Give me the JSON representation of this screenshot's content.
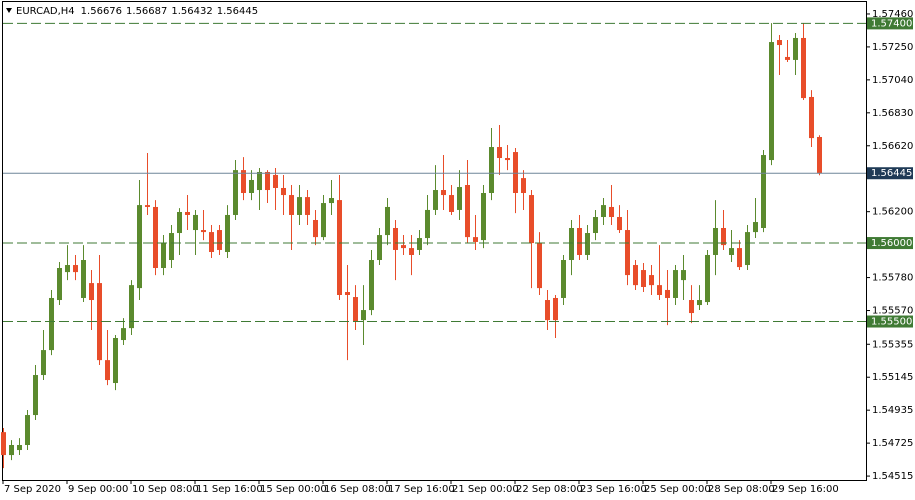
{
  "chart_data": {
    "type": "candlestick",
    "symbol": "EURCAD,H4",
    "up_color": "#5b8a2e",
    "down_color": "#e84d2a",
    "level_color": "#3f7a34",
    "last_color": "#6f8599",
    "categories": [
      "7 Sep 2020",
      null,
      null,
      null,
      null,
      null,
      null,
      null,
      "9 Sep 00:00",
      null,
      null,
      null,
      null,
      null,
      null,
      null,
      "10 Sep 08:00",
      null,
      null,
      null,
      null,
      null,
      null,
      null,
      "11 Sep 16:00",
      null,
      null,
      null,
      null,
      null,
      null,
      null,
      "15 Sep 00:00",
      null,
      null,
      null,
      null,
      null,
      null,
      null,
      "16 Sep 08:00",
      null,
      null,
      null,
      null,
      null,
      null,
      null,
      "17 Sep 16:00",
      null,
      null,
      null,
      null,
      null,
      null,
      null,
      "21 Sep 00:00",
      null,
      null,
      null,
      null,
      null,
      null,
      null,
      "22 Sep 08:00",
      null,
      null,
      null,
      null,
      null,
      null,
      null,
      "23 Sep 16:00",
      null,
      null,
      null,
      null,
      null,
      null,
      null,
      "25 Sep 00:00",
      null,
      null,
      null,
      null,
      null,
      null,
      null,
      "28 Sep 08:00",
      null,
      null,
      null,
      null,
      null,
      null,
      null,
      "29 Sep 16:00",
      null,
      null,
      null,
      null,
      null,
      null
    ],
    "open": [
      1.54795,
      1.54649,
      1.54681,
      1.54713,
      1.54904,
      1.55159,
      1.55318,
      1.55637,
      1.55815,
      1.5586,
      1.5565,
      1.55745,
      1.55745,
      1.55254,
      1.55108,
      1.55382,
      1.55458,
      1.55713,
      1.56242,
      1.5623,
      1.55841,
      1.55892,
      1.56064,
      1.56198,
      1.56083,
      1.56083,
      1.5607,
      1.56083,
      1.55943,
      1.56179,
      1.56465,
      1.56319,
      1.56338,
      1.56453,
      1.56434,
      1.56351,
      1.56306,
      1.56179,
      1.56293,
      1.56147,
      1.56038,
      1.56255,
      1.56274,
      1.55688,
      1.55656,
      1.55509,
      1.55573,
      1.55892,
      1.56051,
      1.56096,
      1.55987,
      1.55968,
      1.55956,
      1.56032,
      1.56211,
      1.56338,
      1.56306,
      1.56211,
      1.5637,
      1.56038,
      1.56019,
      1.56319,
      1.56612,
      1.56542,
      1.5658,
      1.56414,
      1.56306,
      1.56,
      1.55637,
      1.5565,
      1.5565,
      1.55892,
      1.56096,
      1.55924,
      1.56064,
      1.56166,
      1.5623,
      1.56166,
      1.56083,
      1.5586,
      1.55828,
      1.55796,
      1.55732,
      1.55701,
      1.5565,
      1.55764,
      1.55637,
      1.55605,
      1.55624,
      1.55924,
      1.56096,
      1.55924,
      1.55968,
      1.5586,
      1.5607,
      1.56096,
      1.56529,
      1.57294,
      1.57186,
      1.57167,
      1.57307,
      1.56931,
      1.56676
    ],
    "high": [
      1.54821,
      1.54744,
      1.54757,
      1.54936,
      1.55223,
      1.55446,
      1.55701,
      1.55879,
      1.55987,
      1.55924,
      1.55987,
      1.55828,
      1.55924,
      1.55446,
      1.55414,
      1.55522,
      1.55764,
      1.56402,
      1.56574,
      1.56274,
      1.56051,
      1.56115,
      1.56223,
      1.56306,
      1.56211,
      1.56211,
      1.56115,
      1.56115,
      1.56242,
      1.56529,
      1.56548,
      1.56465,
      1.56478,
      1.56465,
      1.56478,
      1.56434,
      1.5637,
      1.5637,
      1.56338,
      1.56211,
      1.56306,
      1.56402,
      1.56434,
      1.5586,
      1.55732,
      1.55732,
      1.55956,
      1.56096,
      1.56287,
      1.56147,
      1.56051,
      1.56051,
      1.56083,
      1.56306,
      1.56497,
      1.56561,
      1.5637,
      1.56465,
      1.56529,
      1.56179,
      1.5637,
      1.56733,
      1.56752,
      1.56625,
      1.56606,
      1.56465,
      1.56338,
      1.5607,
      1.55701,
      1.55669,
      1.55924,
      1.56147,
      1.56179,
      1.56115,
      1.56211,
      1.56287,
      1.5637,
      1.56242,
      1.56211,
      1.55892,
      1.55873,
      1.5586,
      1.55987,
      1.55828,
      1.5586,
      1.55924,
      1.55732,
      1.55732,
      1.55956,
      1.56274,
      1.56211,
      1.56083,
      1.56019,
      1.56115,
      1.56287,
      1.56593,
      1.57402,
      1.57326,
      1.57294,
      1.57339,
      1.57402,
      1.56975,
      1.56687
    ],
    "low": [
      1.54566,
      1.54617,
      1.54649,
      1.54681,
      1.54872,
      1.55127,
      1.55286,
      1.55605,
      1.55764,
      1.55764,
      1.55624,
      1.55446,
      1.55223,
      1.55095,
      1.55063,
      1.5535,
      1.55414,
      1.55637,
      1.56179,
      1.55796,
      1.55796,
      1.55841,
      1.55924,
      1.56083,
      1.55924,
      1.56019,
      1.55905,
      1.55924,
      1.55905,
      1.56147,
      1.56274,
      1.56274,
      1.56211,
      1.56255,
      1.56211,
      1.56179,
      1.55956,
      1.56115,
      1.56115,
      1.55987,
      1.56019,
      1.56179,
      1.55637,
      1.55254,
      1.55446,
      1.5535,
      1.55541,
      1.5586,
      1.55987,
      1.55764,
      1.55924,
      1.55796,
      1.55924,
      1.55987,
      1.56179,
      1.56211,
      1.56179,
      1.56147,
      1.56,
      1.55956,
      1.55968,
      1.56274,
      1.56434,
      1.56465,
      1.56191,
      1.56211,
      1.55713,
      1.55669,
      1.55446,
      1.55395,
      1.55605,
      1.55796,
      1.55892,
      1.55892,
      1.56019,
      1.56115,
      1.56115,
      1.56064,
      1.55732,
      1.55701,
      1.55688,
      1.55669,
      1.55637,
      1.55477,
      1.55605,
      1.55637,
      1.5549,
      1.55573,
      1.55605,
      1.55796,
      1.55956,
      1.55879,
      1.55828,
      1.55828,
      1.56032,
      1.5607,
      1.56497,
      1.57071,
      1.57154,
      1.57071,
      1.56912,
      1.56612,
      1.56432
    ],
    "close": [
      1.54649,
      1.54713,
      1.54713,
      1.54904,
      1.55159,
      1.55318,
      1.5565,
      1.55841,
      1.5586,
      1.55815,
      1.55892,
      1.55637,
      1.55254,
      1.55127,
      1.55395,
      1.55458,
      1.55732,
      1.56242,
      1.5623,
      1.55841,
      1.56,
      1.56064,
      1.56198,
      1.56179,
      1.56179,
      1.5607,
      1.55943,
      1.55956,
      1.56179,
      1.56465,
      1.56319,
      1.56402,
      1.56453,
      1.56338,
      1.56351,
      1.56306,
      1.56179,
      1.56293,
      1.56179,
      1.56038,
      1.56255,
      1.56287,
      1.55669,
      1.55669,
      1.55497,
      1.55573,
      1.55892,
      1.56051,
      1.5623,
      1.55956,
      1.55968,
      1.55924,
      1.56032,
      1.56211,
      1.56338,
      1.56306,
      1.56198,
      1.56357,
      1.56038,
      1.56007,
      1.56319,
      1.56612,
      1.56542,
      1.56529,
      1.56319,
      1.56319,
      1.56,
      1.55713,
      1.55509,
      1.55509,
      1.55892,
      1.56096,
      1.55924,
      1.56064,
      1.56166,
      1.56242,
      1.56166,
      1.56083,
      1.55796,
      1.55732,
      1.5572,
      1.55732,
      1.55669,
      1.5565,
      1.55828,
      1.55828,
      1.55554,
      1.55637,
      1.55924,
      1.56096,
      1.55987,
      1.55968,
      1.55847,
      1.5607,
      1.56134,
      1.56561,
      1.57281,
      1.57262,
      1.57167,
      1.57307,
      1.56924,
      1.56669,
      1.56445
    ],
    "ylim": [
      1.5449,
      1.57549
    ],
    "yticks": [
      {
        "value": 1.5746,
        "label": "1.57460"
      },
      {
        "value": 1.5725,
        "label": "1.57250"
      },
      {
        "value": 1.5704,
        "label": "1.57040"
      },
      {
        "value": 1.5683,
        "label": "1.56830"
      },
      {
        "value": 1.5662,
        "label": "1.56620"
      },
      {
        "value": 1.562,
        "label": "1.56200"
      },
      {
        "value": 1.5578,
        "label": "1.55780"
      },
      {
        "value": 1.5557,
        "label": "1.55570"
      },
      1.55355,
      1.55145,
      1.54935,
      1.54725,
      1.54515
    ],
    "levels": [
      {
        "value": 1.574,
        "label": "1.57400"
      },
      {
        "value": 1.56,
        "label": "1.56000"
      },
      {
        "value": 1.555,
        "label": "1.55500"
      }
    ]
  }
}
